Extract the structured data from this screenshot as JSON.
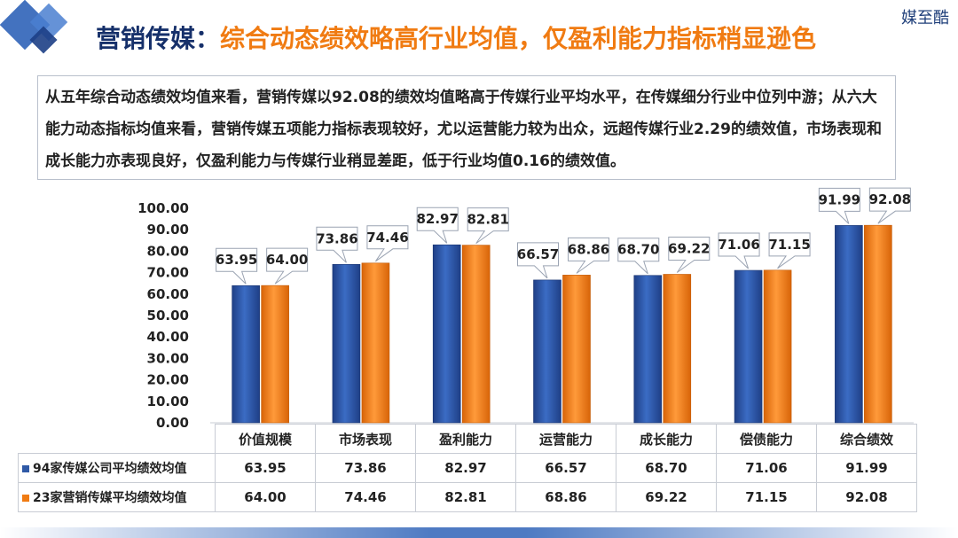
{
  "header": {
    "brand": "媒至酷",
    "title_lead": "营销传媒：",
    "title_accent": "综合动态绩效略高行业均值，仅盈利能力指标稍显逊色"
  },
  "summary": "从五年综合动态绩效均值来看，营销传媒以92.08的绩效均值略高于传媒行业平均水平，在传媒细分行业中位列中游；从六大能力动态指标均值来看，营销传媒五项能力指标表现较好，尤以运营能力较为出众，远超传媒行业2.29的绩效值，市场表现和成长能力亦表现良好，仅盈利能力与传媒行业稍显差距，低于行业均值0.16的绩效值。",
  "colors": {
    "series1": "#2f59a6",
    "series2": "#f07b12",
    "title_dark": "#16306a",
    "title_accent": "#f07b12"
  },
  "chart_data": {
    "type": "bar",
    "categories": [
      "价值规模",
      "市场表现",
      "盈利能力",
      "运营能力",
      "成长能力",
      "偿债能力",
      "综合绩效"
    ],
    "series": [
      {
        "name": "94家传媒公司平均绩效均值",
        "values": [
          63.95,
          73.86,
          82.97,
          66.57,
          68.7,
          71.06,
          91.99
        ]
      },
      {
        "name": "23家营销传媒平均绩效均值",
        "values": [
          64.0,
          74.46,
          82.81,
          68.86,
          69.22,
          71.15,
          92.08
        ]
      }
    ],
    "ylim": [
      0,
      100
    ],
    "yticks": [
      "0.00",
      "10.00",
      "20.00",
      "30.00",
      "40.00",
      "50.00",
      "60.00",
      "70.00",
      "80.00",
      "90.00",
      "100.00"
    ],
    "data_labels": true,
    "legend": "data-table"
  },
  "table": {
    "rows": [
      {
        "label": "94家传媒公司平均绩效均值",
        "cells": [
          "63.95",
          "73.86",
          "82.97",
          "66.57",
          "68.70",
          "71.06",
          "91.99"
        ]
      },
      {
        "label": "23家营销传媒平均绩效均值",
        "cells": [
          "64.00",
          "74.46",
          "82.81",
          "68.86",
          "69.22",
          "71.15",
          "92.08"
        ]
      }
    ],
    "headers": [
      "价值规模",
      "市场表现",
      "盈利能力",
      "运营能力",
      "成长能力",
      "偿债能力",
      "综合绩效"
    ]
  }
}
